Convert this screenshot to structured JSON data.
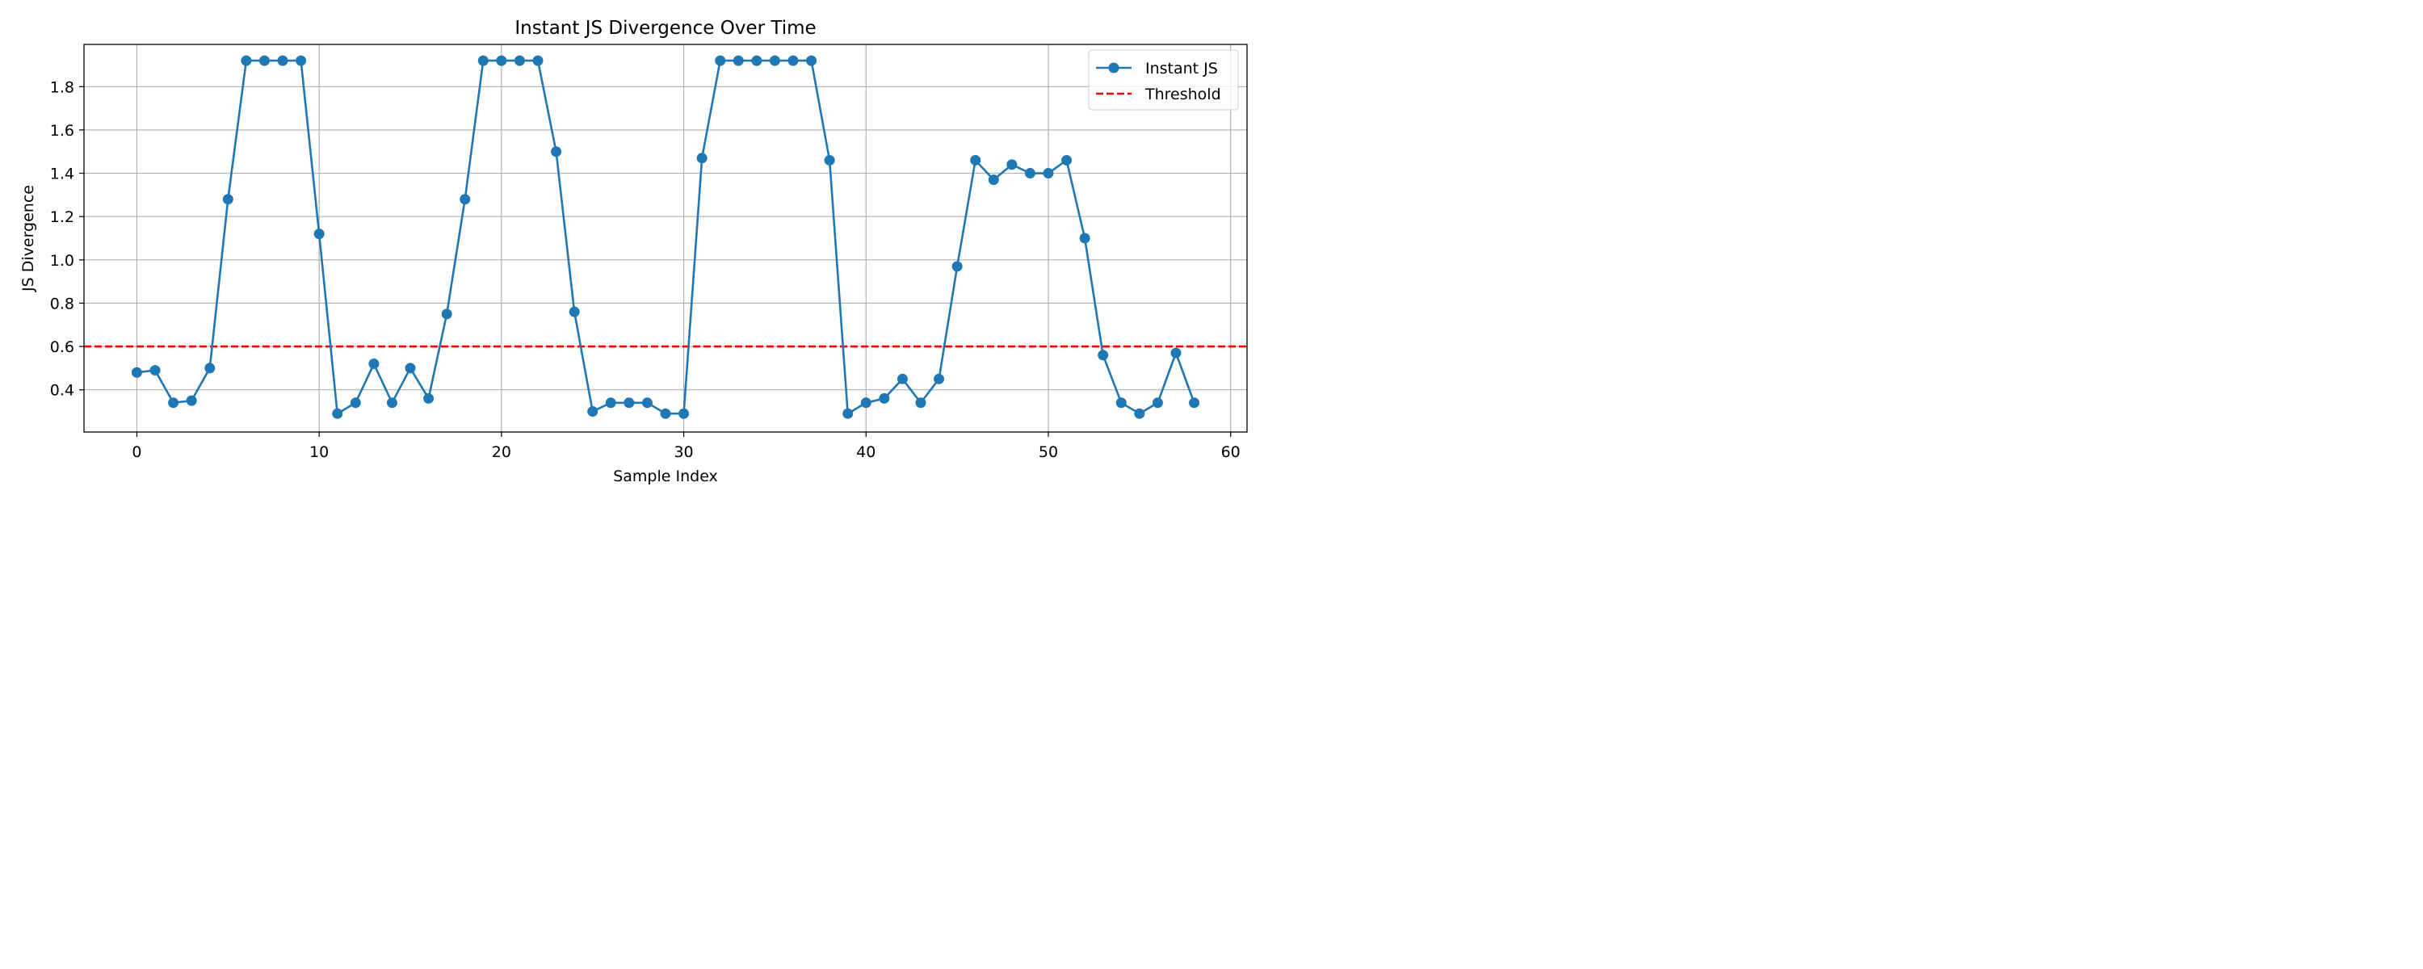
{
  "chart_data": {
    "type": "line",
    "title": "Instant JS Divergence Over Time",
    "xlabel": "Sample Index",
    "ylabel": "JS Divergence",
    "xlim": [
      -2.9,
      60.9
    ],
    "ylim": [
      0.205,
      1.995
    ],
    "xticks": [
      0,
      10,
      20,
      30,
      40,
      50,
      60
    ],
    "yticks": [
      0.4,
      0.6,
      0.8,
      1.0,
      1.2,
      1.4,
      1.6,
      1.8
    ],
    "ytick_labels": [
      "0.4",
      "0.6",
      "0.8",
      "1.0",
      "1.2",
      "1.4",
      "1.6",
      "1.8"
    ],
    "grid": true,
    "legend_position": "top-right",
    "series": [
      {
        "name": "Instant JS",
        "color": "#1f77b4",
        "marker": "circle",
        "x": [
          0,
          1,
          2,
          3,
          4,
          5,
          6,
          7,
          8,
          9,
          10,
          11,
          12,
          13,
          14,
          15,
          16,
          17,
          18,
          19,
          20,
          21,
          22,
          23,
          24,
          25,
          26,
          27,
          28,
          29,
          30,
          31,
          32,
          33,
          34,
          35,
          36,
          37,
          38,
          39,
          40,
          41,
          42,
          43,
          44,
          45,
          46,
          47,
          48,
          49,
          50,
          51,
          52,
          53,
          54,
          55,
          56,
          57,
          58
        ],
        "values": [
          0.48,
          0.49,
          0.34,
          0.35,
          0.5,
          1.28,
          1.92,
          1.92,
          1.92,
          1.92,
          1.12,
          0.29,
          0.34,
          0.52,
          0.34,
          0.5,
          0.36,
          0.75,
          1.28,
          1.92,
          1.92,
          1.92,
          1.92,
          1.5,
          0.76,
          0.3,
          0.34,
          0.34,
          0.34,
          0.29,
          0.29,
          1.47,
          1.92,
          1.92,
          1.92,
          1.92,
          1.92,
          1.92,
          1.46,
          0.29,
          0.34,
          0.36,
          0.45,
          0.34,
          0.45,
          0.97,
          1.46,
          1.37,
          1.44,
          1.4,
          1.4,
          1.46,
          1.1,
          0.56,
          0.34,
          0.29,
          0.34,
          0.57,
          0.34
        ]
      }
    ],
    "threshold": {
      "name": "Threshold",
      "value": 0.6,
      "color": "#ff0000",
      "style": "dashed"
    }
  }
}
